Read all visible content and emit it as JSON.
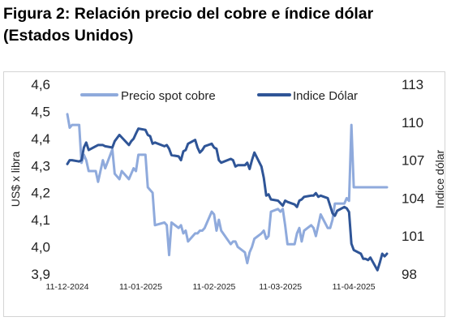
{
  "figure": {
    "title_line1": "Figura 2: Relación precio del cobre e índice dólar",
    "title_line2": "(Estados Unidos)"
  },
  "colors": {
    "copper": "#8faadc",
    "dollar": "#2f5597"
  },
  "chart_data": {
    "type": "line",
    "title": "Figura 2: Relación precio del cobre e índice dólar (Estados Unidos)",
    "x_ticks": [
      "11-12-2024",
      "11-01-2025",
      "11-02-2025",
      "11-03-2025",
      "11-04-2025"
    ],
    "x_range": [
      "2024-12-11",
      "2025-04-25"
    ],
    "y_left": {
      "label": "US$ x libra",
      "range": [
        3.9,
        4.6
      ],
      "ticks": [
        "3,9",
        "4,0",
        "4,1",
        "4,2",
        "4,3",
        "4,4",
        "4,5",
        "4,6"
      ]
    },
    "y_right": {
      "label": "Indice dólar",
      "range": [
        98,
        113
      ],
      "ticks": [
        "98",
        "101",
        "104",
        "107",
        "110",
        "113"
      ]
    },
    "legend_position": "top",
    "grid": false,
    "series": [
      {
        "name": "Precio spot cobre",
        "axis": "left",
        "x": [
          "2024-12-11",
          "2024-12-12",
          "2024-12-13",
          "2024-12-16",
          "2024-12-17",
          "2024-12-18",
          "2024-12-19",
          "2024-12-20",
          "2024-12-23",
          "2024-12-24",
          "2024-12-26",
          "2024-12-27",
          "2024-12-30",
          "2024-12-31",
          "2025-01-02",
          "2025-01-03",
          "2025-01-06",
          "2025-01-07",
          "2025-01-08",
          "2025-01-09",
          "2025-01-10",
          "2025-01-13",
          "2025-01-14",
          "2025-01-15",
          "2025-01-16",
          "2025-01-17",
          "2025-01-21",
          "2025-01-22",
          "2025-01-23",
          "2025-01-24",
          "2025-01-27",
          "2025-01-28",
          "2025-01-29",
          "2025-01-30",
          "2025-01-31",
          "2025-02-03",
          "2025-02-04",
          "2025-02-05",
          "2025-02-06",
          "2025-02-07",
          "2025-02-10",
          "2025-02-11",
          "2025-02-12",
          "2025-02-13",
          "2025-02-14",
          "2025-02-18",
          "2025-02-19",
          "2025-02-20",
          "2025-02-21",
          "2025-02-24",
          "2025-02-25",
          "2025-02-26",
          "2025-02-27",
          "2025-02-28",
          "2025-03-03",
          "2025-03-04",
          "2025-03-05",
          "2025-03-06",
          "2025-03-07",
          "2025-03-10",
          "2025-03-11",
          "2025-03-12",
          "2025-03-13",
          "2025-03-14",
          "2025-03-17",
          "2025-03-18",
          "2025-03-19",
          "2025-03-20",
          "2025-03-21",
          "2025-03-24",
          "2025-03-25",
          "2025-03-26",
          "2025-03-27",
          "2025-03-28",
          "2025-03-31",
          "2025-04-01",
          "2025-04-02",
          "2025-04-03",
          "2025-04-04",
          "2025-04-07",
          "2025-04-08",
          "2025-04-09",
          "2025-04-10",
          "2025-04-11",
          "2025-04-14",
          "2025-04-15",
          "2025-04-16",
          "2025-04-17",
          "2025-04-18",
          "2025-04-21",
          "2025-04-22",
          "2025-04-23",
          "2025-04-24",
          "2025-04-25"
        ],
        "values": [
          4.49,
          4.44,
          4.45,
          4.45,
          4.31,
          4.34,
          4.32,
          4.28,
          4.28,
          4.24,
          4.32,
          4.29,
          4.36,
          4.27,
          4.25,
          4.28,
          4.25,
          4.27,
          4.29,
          4.28,
          4.34,
          4.34,
          4.22,
          4.21,
          4.2,
          4.08,
          4.09,
          4.08,
          3.97,
          4.09,
          4.07,
          4.08,
          4.05,
          4.06,
          4.02,
          4.05,
          4.05,
          4.06,
          4.06,
          4.07,
          4.13,
          4.12,
          4.06,
          4.1,
          4.06,
          4.01,
          4.02,
          4.02,
          4.0,
          3.98,
          3.94,
          3.98,
          4.0,
          4.03,
          4.05,
          4.06,
          4.03,
          4.04,
          4.13,
          4.14,
          4.13,
          4.14,
          4.08,
          4.01,
          4.01,
          4.05,
          4.07,
          4.02,
          4.06,
          4.08,
          4.07,
          4.04,
          4.08,
          4.12,
          4.07,
          4.07,
          4.1,
          4.16,
          4.16,
          4.16,
          4.18,
          4.17,
          4.45,
          4.22,
          4.22,
          4.22,
          4.22,
          4.22,
          4.22,
          4.22,
          4.22,
          4.22,
          4.22,
          4.22
        ]
      },
      {
        "name": "Indice Dólar",
        "axis": "right",
        "x": [
          "2024-12-11",
          "2024-12-12",
          "2024-12-13",
          "2024-12-16",
          "2024-12-17",
          "2024-12-18",
          "2024-12-19",
          "2024-12-20",
          "2024-12-23",
          "2024-12-24",
          "2024-12-26",
          "2024-12-27",
          "2024-12-30",
          "2024-12-31",
          "2025-01-02",
          "2025-01-03",
          "2025-01-06",
          "2025-01-07",
          "2025-01-08",
          "2025-01-09",
          "2025-01-10",
          "2025-01-13",
          "2025-01-14",
          "2025-01-15",
          "2025-01-16",
          "2025-01-17",
          "2025-01-21",
          "2025-01-22",
          "2025-01-23",
          "2025-01-24",
          "2025-01-27",
          "2025-01-28",
          "2025-01-29",
          "2025-01-30",
          "2025-01-31",
          "2025-02-03",
          "2025-02-04",
          "2025-02-05",
          "2025-02-06",
          "2025-02-07",
          "2025-02-10",
          "2025-02-11",
          "2025-02-12",
          "2025-02-13",
          "2025-02-14",
          "2025-02-18",
          "2025-02-19",
          "2025-02-20",
          "2025-02-21",
          "2025-02-24",
          "2025-02-25",
          "2025-02-26",
          "2025-02-27",
          "2025-02-28",
          "2025-03-03",
          "2025-03-04",
          "2025-03-05",
          "2025-03-06",
          "2025-03-07",
          "2025-03-10",
          "2025-03-11",
          "2025-03-12",
          "2025-03-13",
          "2025-03-14",
          "2025-03-17",
          "2025-03-18",
          "2025-03-19",
          "2025-03-20",
          "2025-03-21",
          "2025-03-24",
          "2025-03-25",
          "2025-03-26",
          "2025-03-27",
          "2025-03-28",
          "2025-03-31",
          "2025-04-01",
          "2025-04-02",
          "2025-04-03",
          "2025-04-04",
          "2025-04-07",
          "2025-04-08",
          "2025-04-09",
          "2025-04-10",
          "2025-04-11",
          "2025-04-14",
          "2025-04-15",
          "2025-04-16",
          "2025-04-17",
          "2025-04-18",
          "2025-04-21",
          "2025-04-22",
          "2025-04-23",
          "2025-04-24",
          "2025-04-25"
        ],
        "values": [
          106.7,
          107.0,
          107.0,
          106.9,
          107.0,
          108.0,
          108.4,
          107.8,
          108.1,
          108.2,
          108.2,
          108.1,
          108.0,
          108.5,
          109.0,
          108.8,
          108.2,
          108.5,
          108.7,
          109.1,
          109.5,
          109.4,
          109.0,
          108.9,
          108.3,
          108.4,
          108.1,
          108.2,
          107.9,
          107.4,
          107.3,
          107.0,
          107.7,
          107.8,
          108.3,
          108.6,
          108.0,
          107.6,
          107.8,
          108.1,
          108.3,
          108.0,
          107.9,
          107.0,
          106.8,
          107.1,
          107.0,
          106.5,
          106.6,
          106.6,
          106.8,
          106.3,
          107.0,
          107.6,
          106.5,
          105.6,
          104.2,
          104.3,
          103.9,
          103.8,
          103.6,
          103.4,
          103.8,
          103.7,
          103.5,
          103.3,
          103.8,
          103.9,
          104.1,
          104.2,
          104.2,
          104.4,
          104.1,
          104.2,
          104.0,
          103.4,
          102.8,
          102.6,
          103.0,
          103.3,
          103.2,
          102.9,
          100.4,
          99.9,
          99.6,
          99.2,
          99.2,
          99.1,
          99.3,
          98.3,
          98.9,
          99.6,
          99.4,
          99.6
        ]
      }
    ]
  }
}
